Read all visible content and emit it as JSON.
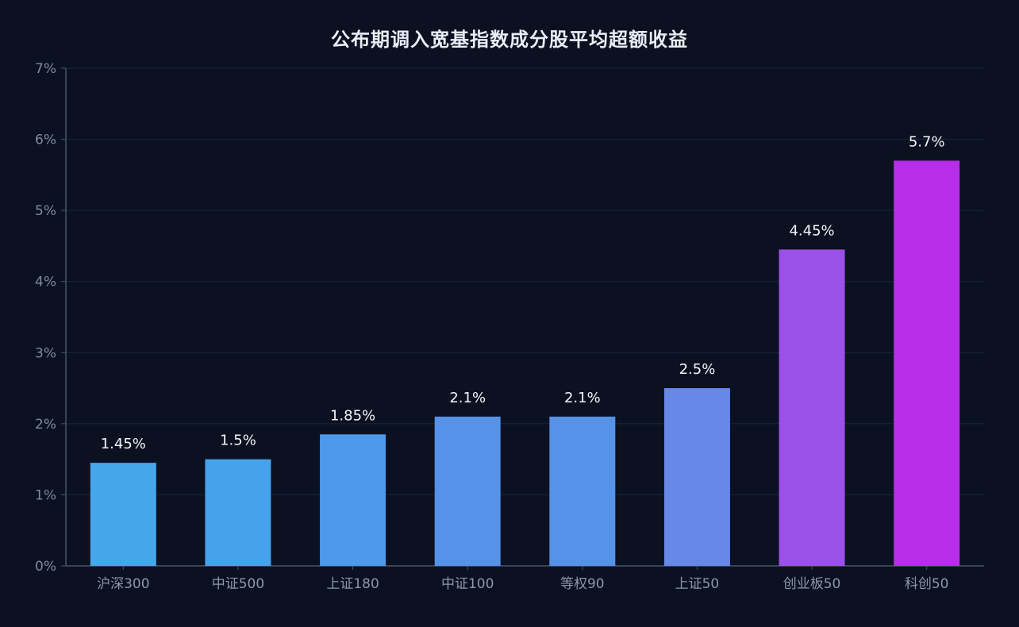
{
  "chart_data": {
    "type": "bar",
    "title": "公布期调入宽基指数成分股平均超额收益",
    "categories": [
      "沪深300",
      "中证500",
      "上证180",
      "中证100",
      "等权90",
      "上证50",
      "创业板50",
      "科创50"
    ],
    "values": [
      1.45,
      1.5,
      1.85,
      2.1,
      2.1,
      2.5,
      4.45,
      5.7
    ],
    "value_labels": [
      "1.45%",
      "1.5%",
      "1.85%",
      "2.1%",
      "2.1%",
      "2.5%",
      "4.45%",
      "5.7%"
    ],
    "yticks": [
      0,
      1,
      2,
      3,
      4,
      5,
      6,
      7
    ],
    "ytick_labels": [
      "0%",
      "1%",
      "2%",
      "3%",
      "4%",
      "5%",
      "6%",
      "7%"
    ],
    "ylim": [
      0,
      7
    ],
    "xlabel": "",
    "ylabel": "",
    "grid": true,
    "bar_colors": [
      "#45a6ec",
      "#47a2ec",
      "#4f99ea",
      "#5692e8",
      "#5692e8",
      "#6888e8",
      "#9a50e9",
      "#b62ee8"
    ]
  },
  "colors": {
    "background": "#0b1120",
    "grid": "#1b2638",
    "axis": "#4b5568"
  }
}
